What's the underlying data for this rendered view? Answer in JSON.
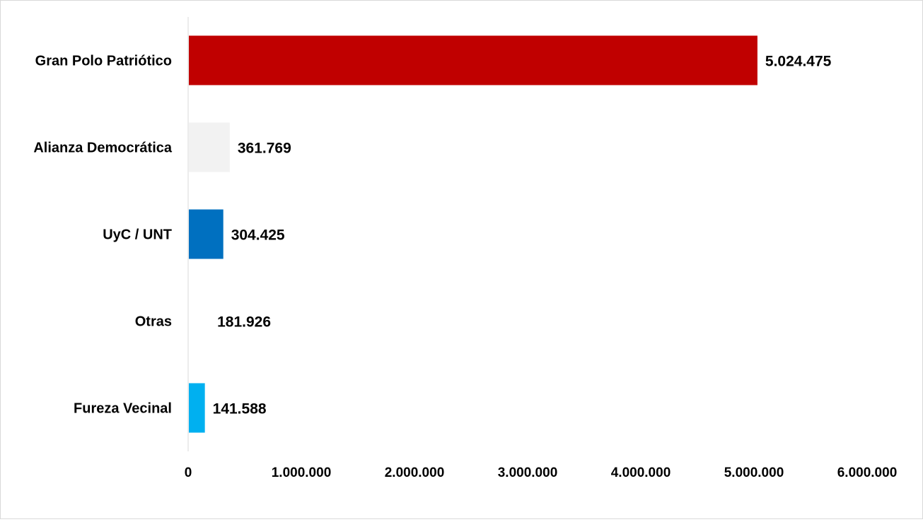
{
  "chart_data": {
    "type": "bar",
    "orientation": "horizontal",
    "title": "",
    "xlabel": "",
    "ylabel": "",
    "categories": [
      "Gran Polo Patriótico",
      "Alianza Democrática",
      "UyC / UNT",
      "Otras",
      "Fureza Vecinal"
    ],
    "values": [
      5024475,
      361769,
      304425,
      181926,
      141588
    ],
    "value_labels": [
      "5.024.475",
      "361.769",
      "304.425",
      "181.926",
      "141.588"
    ],
    "bar_colors": [
      "#c00000",
      "#f2f2f2",
      "#0070c0",
      "#ffffff",
      "#00b0f0"
    ],
    "xlim": [
      0,
      6000000
    ],
    "x_ticks": [
      0,
      1000000,
      2000000,
      3000000,
      4000000,
      5000000,
      6000000
    ],
    "x_tick_labels": [
      "0",
      "1.000.000",
      "2.000.000",
      "3.000.000",
      "4.000.000",
      "5.000.000",
      "6.000.000"
    ],
    "grid": false,
    "legend": "none"
  }
}
